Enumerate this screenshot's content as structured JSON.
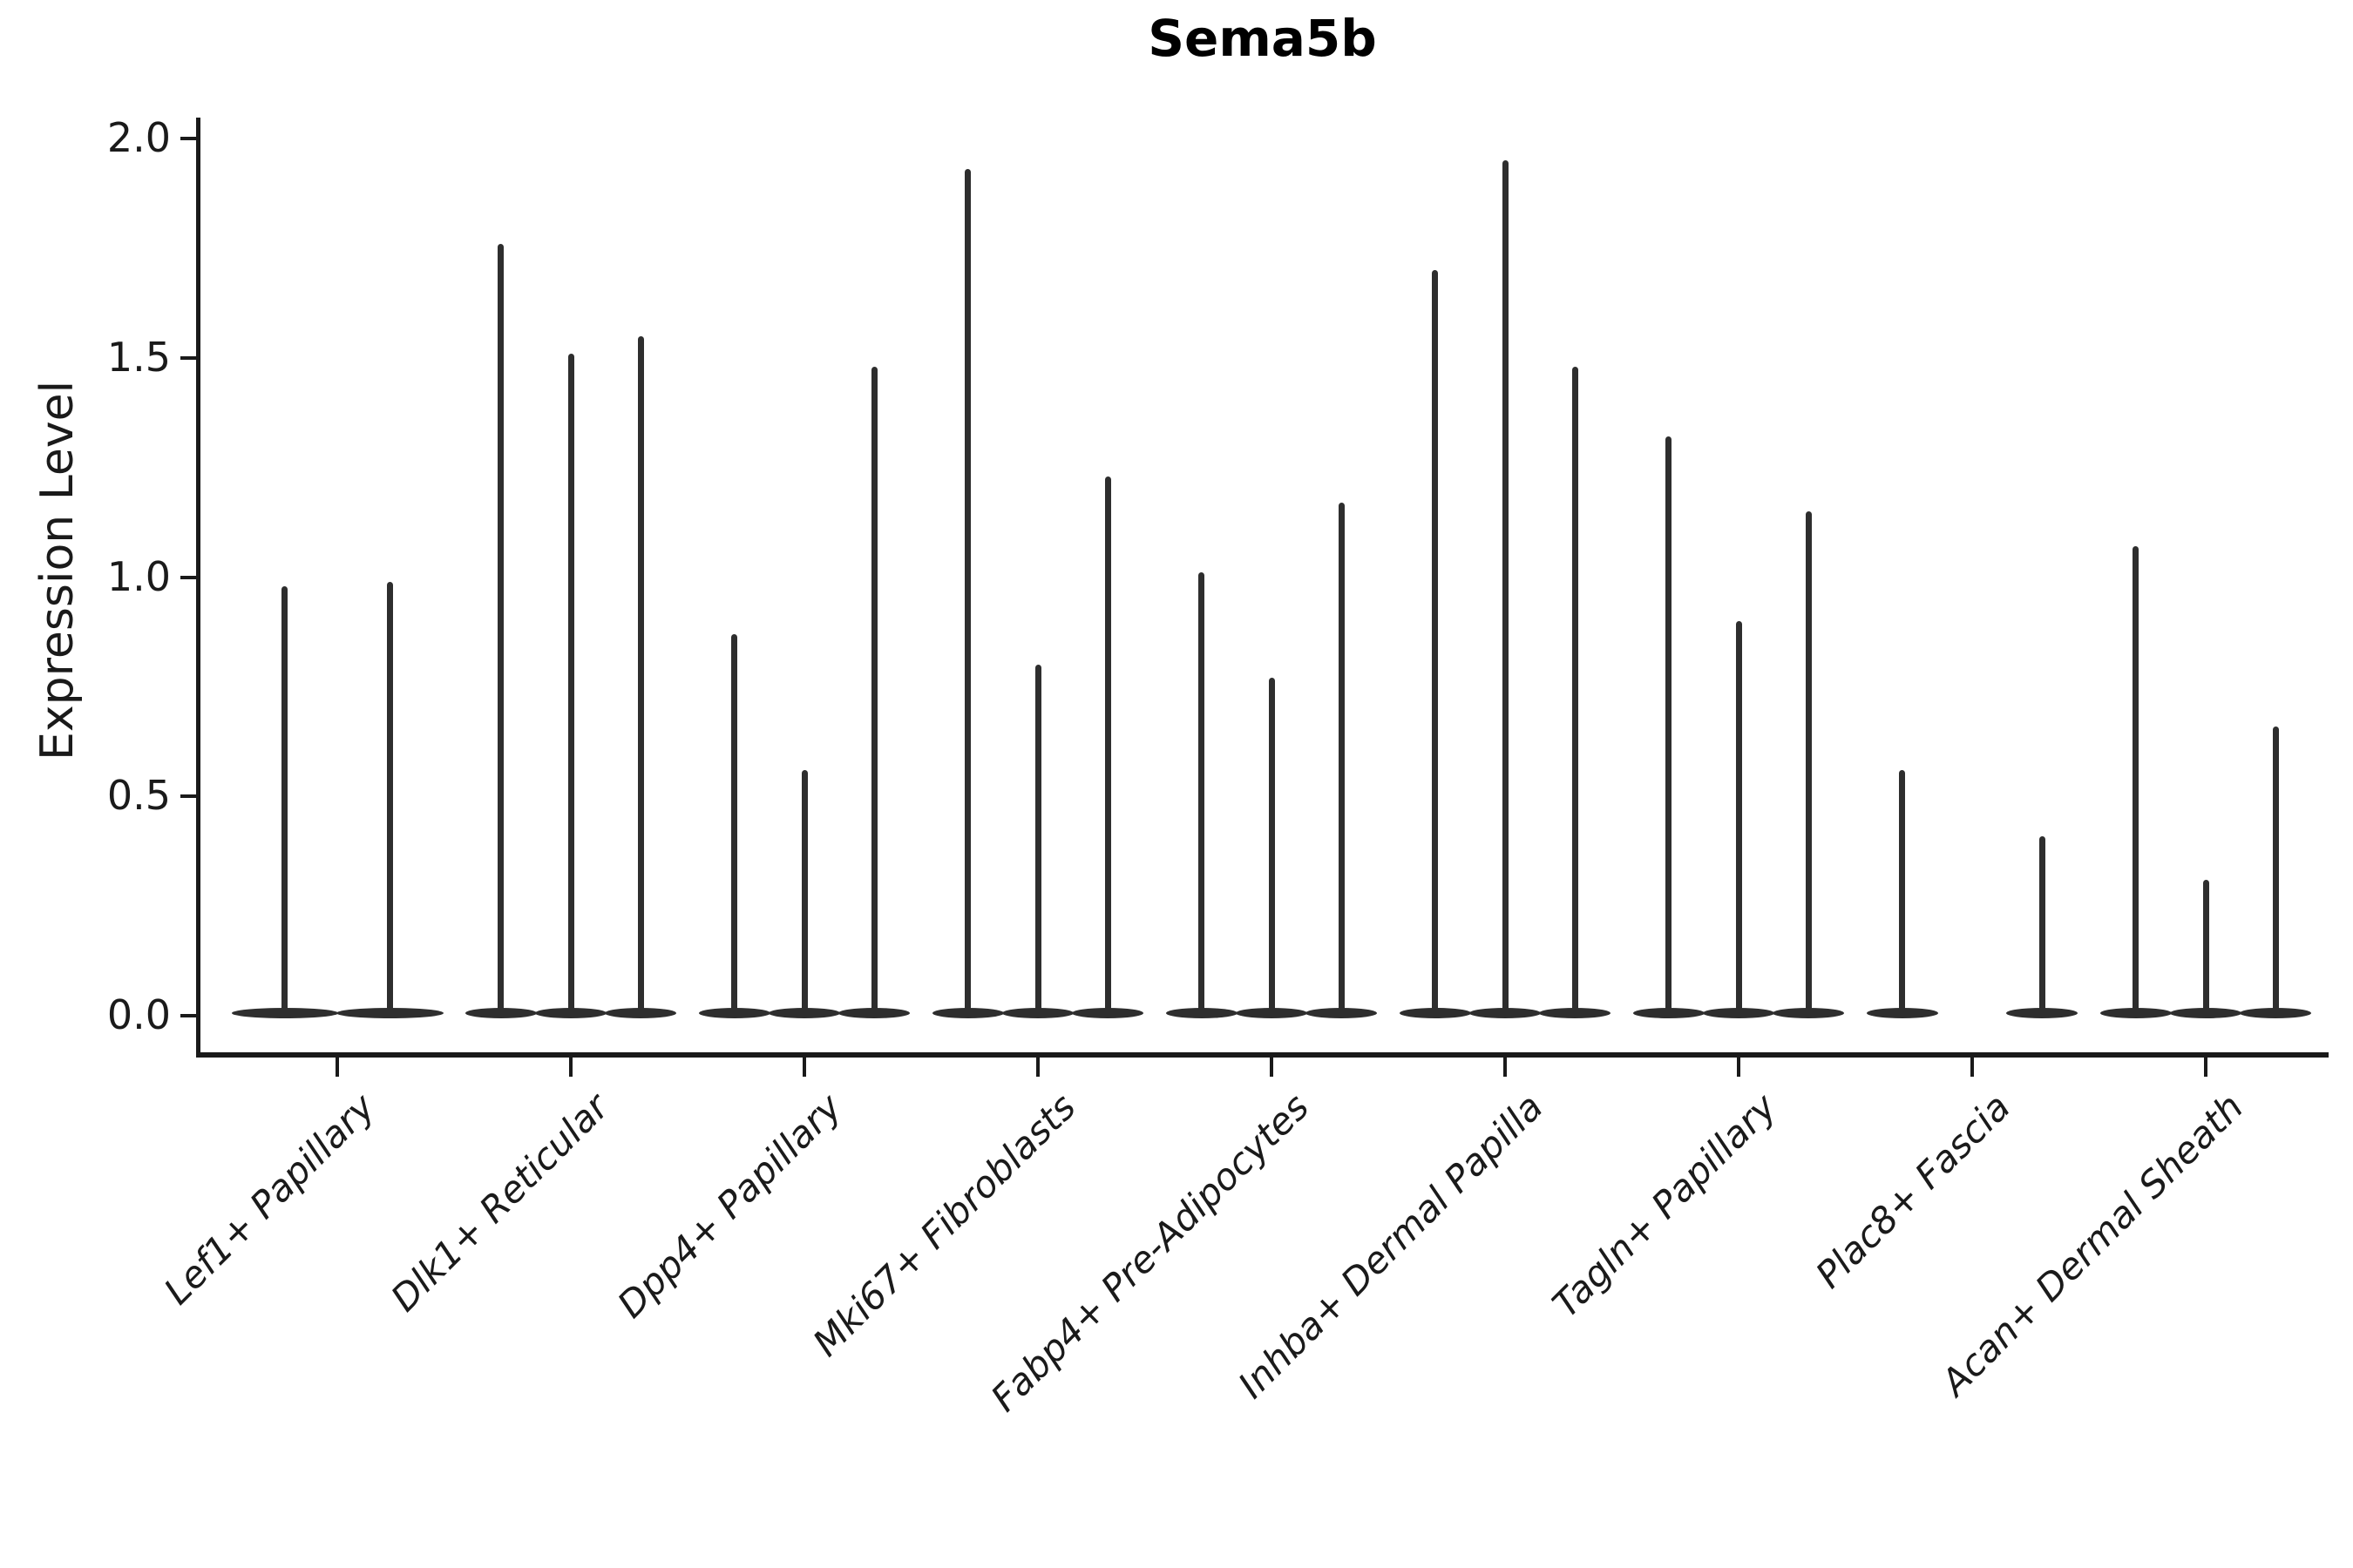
{
  "title": "Sema5b",
  "y_axis": {
    "label": "Expression Level",
    "tick_labels": [
      "0.0",
      "0.5",
      "1.0",
      "1.5",
      "2.0"
    ],
    "tick_values": [
      0.0,
      0.5,
      1.0,
      1.5,
      2.0
    ]
  },
  "chart_data": {
    "type": "violin",
    "title": "Sema5b",
    "xlabel": "",
    "ylabel": "Expression Level",
    "ylim": [
      0.0,
      2.0
    ],
    "grid": false,
    "legend": false,
    "style": "thin violins: flat density lens at 0 with narrow spike up to max expression",
    "categories": [
      "Lef1+ Papillary",
      "Dlk1+ Reticular",
      "Dpp4+ Papillary",
      "Mki67+ Fibroblasts",
      "Fabp4+ Pre-Adipocytes",
      "Inhba+ Dermal Papilla",
      "Tagln+ Papillary",
      "Plac8+ Fascia",
      "Acan+ Dermal Sheath"
    ],
    "groups": [
      {
        "category": "Lef1+ Papillary",
        "slots": 2,
        "violins": [
          {
            "slot": 0,
            "max": 0.98
          },
          {
            "slot": 1,
            "max": 0.99
          }
        ]
      },
      {
        "category": "Dlk1+ Reticular",
        "slots": 3,
        "violins": [
          {
            "slot": 0,
            "max": 1.76
          },
          {
            "slot": 1,
            "max": 1.51
          },
          {
            "slot": 2,
            "max": 1.55
          }
        ]
      },
      {
        "category": "Dpp4+ Papillary",
        "slots": 3,
        "violins": [
          {
            "slot": 0,
            "max": 0.87
          },
          {
            "slot": 1,
            "max": 0.56
          },
          {
            "slot": 2,
            "max": 1.48
          }
        ]
      },
      {
        "category": "Mki67+ Fibroblasts",
        "slots": 3,
        "violins": [
          {
            "slot": 0,
            "max": 1.93
          },
          {
            "slot": 1,
            "max": 0.8
          },
          {
            "slot": 2,
            "max": 1.23
          }
        ]
      },
      {
        "category": "Fabp4+ Pre-Adipocytes",
        "slots": 3,
        "violins": [
          {
            "slot": 0,
            "max": 1.01
          },
          {
            "slot": 1,
            "max": 0.77
          },
          {
            "slot": 2,
            "max": 1.17
          }
        ]
      },
      {
        "category": "Inhba+ Dermal Papilla",
        "slots": 3,
        "violins": [
          {
            "slot": 0,
            "max": 1.7
          },
          {
            "slot": 1,
            "max": 1.95
          },
          {
            "slot": 2,
            "max": 1.48
          }
        ]
      },
      {
        "category": "Tagln+ Papillary",
        "slots": 3,
        "violins": [
          {
            "slot": 0,
            "max": 1.32
          },
          {
            "slot": 1,
            "max": 0.9
          },
          {
            "slot": 2,
            "max": 1.15
          }
        ]
      },
      {
        "category": "Plac8+ Fascia",
        "slots": 3,
        "violins": [
          {
            "slot": 0,
            "max": 0.56
          },
          {
            "slot": 2,
            "max": 0.41
          }
        ]
      },
      {
        "category": "Acan+ Dermal Sheath",
        "slots": 3,
        "violins": [
          {
            "slot": 0,
            "max": 1.07
          },
          {
            "slot": 1,
            "max": 0.31
          },
          {
            "slot": 2,
            "max": 0.66
          }
        ]
      }
    ]
  },
  "colors": {
    "ink": "#1a1a1a",
    "violin": "#2e2e2e",
    "background": "#ffffff"
  }
}
